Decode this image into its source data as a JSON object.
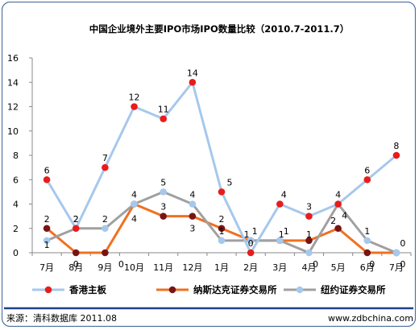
{
  "chart_data": {
    "type": "line",
    "title": "中国企业境外主要IPO市场IPO数量比较（2010.7-2011.7）",
    "categories": [
      "7月",
      "8月",
      "9月",
      "10月",
      "11月",
      "12月",
      "1月",
      "2月",
      "3月",
      "4月",
      "5月",
      "6月",
      "7月"
    ],
    "ylim": [
      0,
      16
    ],
    "yticks": [
      "0",
      "2",
      "4",
      "6",
      "8",
      "10",
      "12",
      "14",
      "16"
    ],
    "grid": false,
    "legend_position": "bottom",
    "series": [
      {
        "name": "香港主板",
        "values": [
          6,
          2,
          7,
          12,
          11,
          14,
          5,
          0,
          4,
          3,
          4,
          6,
          8
        ],
        "line_color": "#a6c8ec",
        "marker_color": "#e81c1c"
      },
      {
        "name": "纳斯达克证券交易所",
        "values": [
          2,
          0,
          0,
          4,
          3,
          3,
          2,
          1,
          1,
          1,
          2,
          0,
          0
        ],
        "line_color": "#f07020",
        "marker_color": "#7a1414"
      },
      {
        "name": "纽约证券交易所",
        "values": [
          1,
          2,
          2,
          4,
          5,
          4,
          1,
          1,
          1,
          0,
          4,
          1,
          0
        ],
        "line_color": "#a0a0a0",
        "marker_color": "#a6c8ec"
      }
    ],
    "data_labels": [
      [
        "6",
        "2",
        "7",
        "12",
        "11",
        "14",
        "5",
        "0",
        "4",
        "3",
        "4",
        "6",
        "8"
      ],
      [
        "2",
        "0",
        "0",
        "4",
        "3",
        "3",
        "2",
        "1",
        "1",
        "1",
        "2",
        "0",
        "0"
      ],
      [
        "1",
        "2",
        "2",
        "4",
        "5",
        "4",
        "1",
        "1",
        "1",
        "0",
        "4",
        "1",
        "0"
      ]
    ]
  },
  "footer": {
    "source": "来源：清科数据库 2011.08",
    "website": "www.zdbchina.com"
  },
  "colors": {
    "border": "#4a6ea0",
    "footer_line": "#1f3f8a",
    "axis": "#888888",
    "text": "#000000"
  }
}
